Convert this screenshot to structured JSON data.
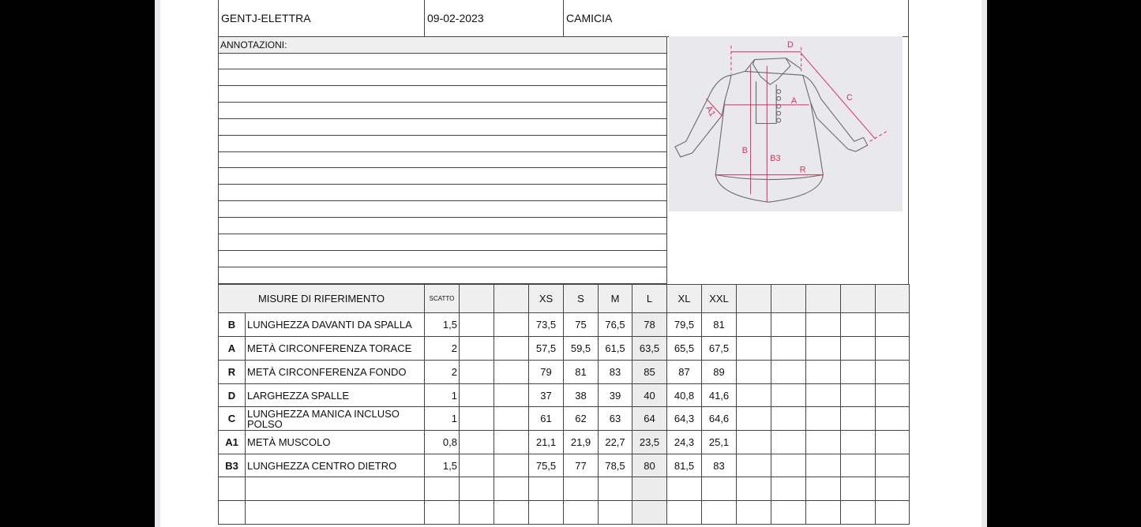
{
  "header": {
    "model": "GENTJ-ELETTRA",
    "date": "09-02-2023",
    "garment": "CAMICIA"
  },
  "annotations": {
    "label": "ANNOTAZIONI:",
    "lines": [
      "",
      "",
      "",
      "",
      "",
      "",
      "",
      "",
      "",
      "",
      "",
      "",
      "",
      ""
    ]
  },
  "sketch": {
    "labels": [
      "D",
      "A",
      "C",
      "A1",
      "B",
      "B3",
      "R"
    ],
    "line_color": "#d9305a"
  },
  "table": {
    "title": "MISURE DI RIFERIMENTO",
    "scatto_label": "SCATTO",
    "sizes": [
      "",
      "",
      "XS",
      "S",
      "M",
      "L",
      "XL",
      "XXL",
      "",
      "",
      "",
      "",
      ""
    ],
    "highlight_size": "L",
    "rows": [
      {
        "code": "B",
        "desc": "LUNGHEZZA DAVANTI DA SPALLA",
        "scatto": "1,5",
        "values": [
          "",
          "",
          "73,5",
          "75",
          "76,5",
          "78",
          "79,5",
          "81",
          "",
          "",
          "",
          "",
          ""
        ]
      },
      {
        "code": "A",
        "desc": "METÀ CIRCONFERENZA TORACE",
        "scatto": "2",
        "values": [
          "",
          "",
          "57,5",
          "59,5",
          "61,5",
          "63,5",
          "65,5",
          "67,5",
          "",
          "",
          "",
          "",
          ""
        ]
      },
      {
        "code": "R",
        "desc": "METÀ CIRCONFERENZA FONDO",
        "scatto": "2",
        "values": [
          "",
          "",
          "79",
          "81",
          "83",
          "85",
          "87",
          "89",
          "",
          "",
          "",
          "",
          ""
        ]
      },
      {
        "code": "D",
        "desc": "LARGHEZZA SPALLE",
        "scatto": "1",
        "values": [
          "",
          "",
          "37",
          "38",
          "39",
          "40",
          "40,8",
          "41,6",
          "",
          "",
          "",
          "",
          ""
        ]
      },
      {
        "code": "C",
        "desc": "LUNGHEZZA MANICA INCLUSO POLSO",
        "scatto": "1",
        "values": [
          "",
          "",
          "61",
          "62",
          "63",
          "64",
          "64,3",
          "64,6",
          "",
          "",
          "",
          "",
          ""
        ]
      },
      {
        "code": "A1",
        "desc": "METÀ MUSCOLO",
        "scatto": "0,8",
        "values": [
          "",
          "",
          "21,1",
          "21,9",
          "22,7",
          "23,5",
          "24,3",
          "25,1",
          "",
          "",
          "",
          "",
          ""
        ]
      },
      {
        "code": "B3",
        "desc": "LUNGHEZZA CENTRO DIETRO",
        "scatto": "1,5",
        "values": [
          "",
          "",
          "75,5",
          "77",
          "78,5",
          "80",
          "81,5",
          "83",
          "",
          "",
          "",
          "",
          ""
        ]
      },
      {
        "code": "",
        "desc": "",
        "scatto": "",
        "values": [
          "",
          "",
          "",
          "",
          "",
          "",
          "",
          "",
          "",
          "",
          "",
          "",
          ""
        ]
      },
      {
        "code": "",
        "desc": "",
        "scatto": "",
        "values": [
          "",
          "",
          "",
          "",
          "",
          "",
          "",
          "",
          "",
          "",
          "",
          "",
          ""
        ]
      }
    ]
  }
}
